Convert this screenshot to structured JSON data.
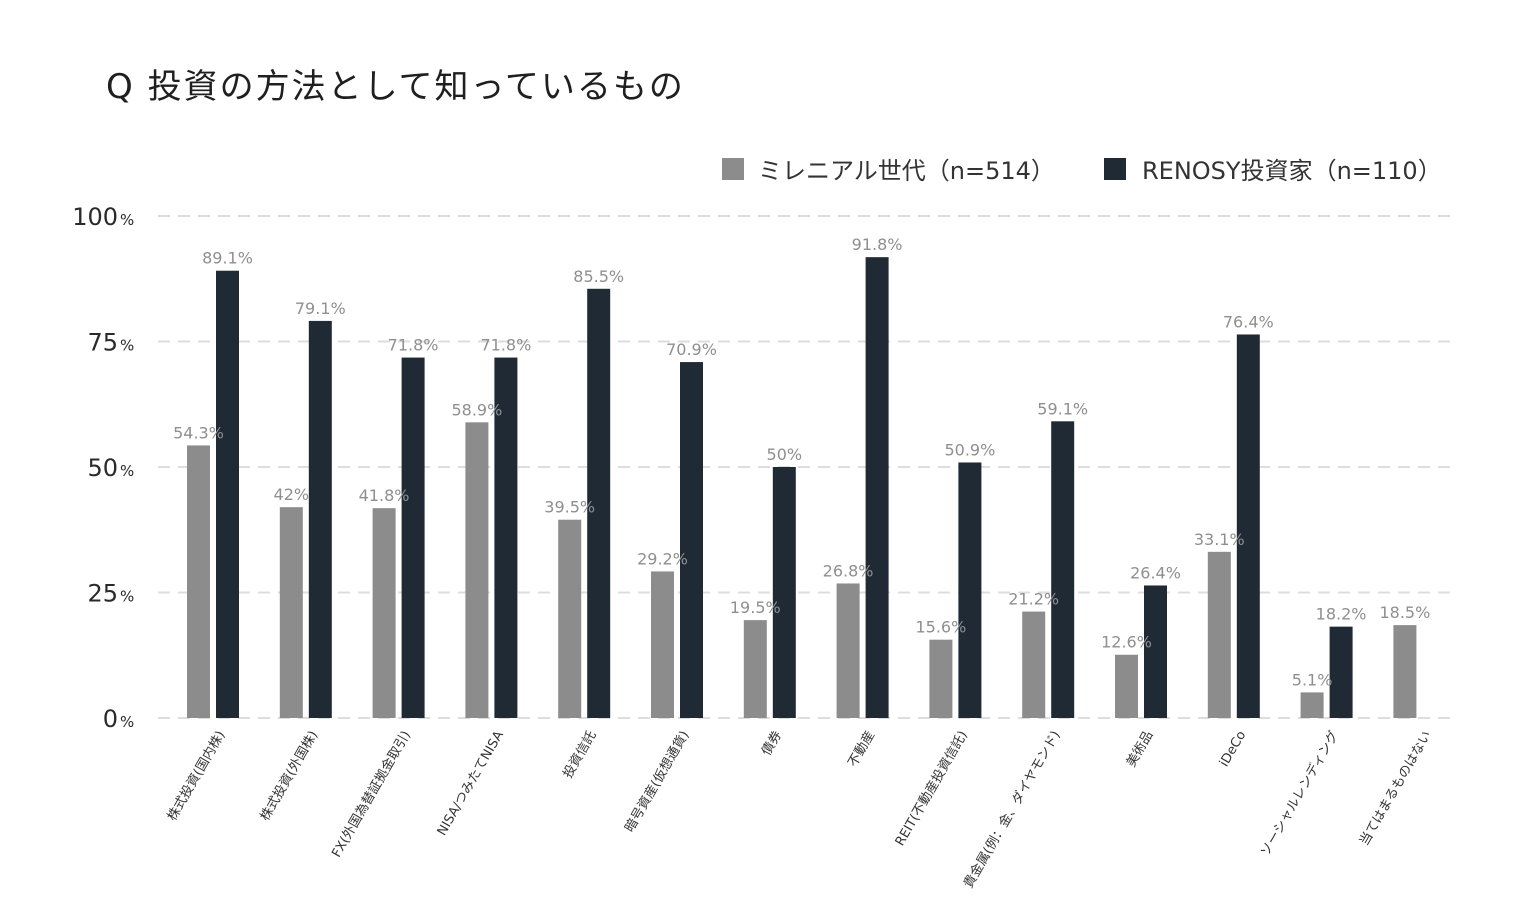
{
  "chart_data": {
    "type": "bar",
    "title": "Q 投資の方法として知っているもの",
    "xlabel": "",
    "ylabel": "",
    "ylim": [
      0,
      100
    ],
    "yticks": [
      0,
      25,
      50,
      75,
      100
    ],
    "ytick_suffix": "%",
    "grid": true,
    "legend_position": "top-right",
    "categories": [
      "株式投資(国内株)",
      "株式投資(外国株)",
      "FX(外国為替証拠金取引)",
      "NISA/つみたてNISA",
      "投資信託",
      "暗号資産(仮想通貨)",
      "債券",
      "不動産",
      "REIT(不動産投資信託)",
      "貴金属(例：金、ダイヤモンド)",
      "美術品",
      "iDeCo",
      "ソーシャルレンディング",
      "当てはまるものはない"
    ],
    "series": [
      {
        "name": "ミレニアル世代（n=514）",
        "color": "#8c8c8c",
        "values": [
          54.3,
          42,
          41.8,
          58.9,
          39.5,
          29.2,
          19.5,
          26.8,
          15.6,
          21.2,
          12.6,
          33.1,
          5.1,
          18.5
        ],
        "labels": [
          "54.3%",
          "42%",
          "41.8%",
          "58.9%",
          "39.5%",
          "29.2%",
          "19.5%",
          "26.8%",
          "15.6%",
          "21.2%",
          "12.6%",
          "33.1%",
          "5.1%",
          "18.5%"
        ]
      },
      {
        "name": "RENOSY投資家（n=110）",
        "color": "#202a35",
        "values": [
          89.1,
          79.1,
          71.8,
          71.8,
          85.5,
          70.9,
          50,
          91.8,
          50.9,
          59.1,
          26.4,
          76.4,
          18.2,
          null
        ],
        "labels": [
          "89.1%",
          "79.1%",
          "71.8%",
          "71.8%",
          "85.5%",
          "70.9%",
          "50%",
          "91.8%",
          "50.9%",
          "59.1%",
          "26.4%",
          "76.4%",
          "18.2%",
          ""
        ]
      }
    ]
  }
}
